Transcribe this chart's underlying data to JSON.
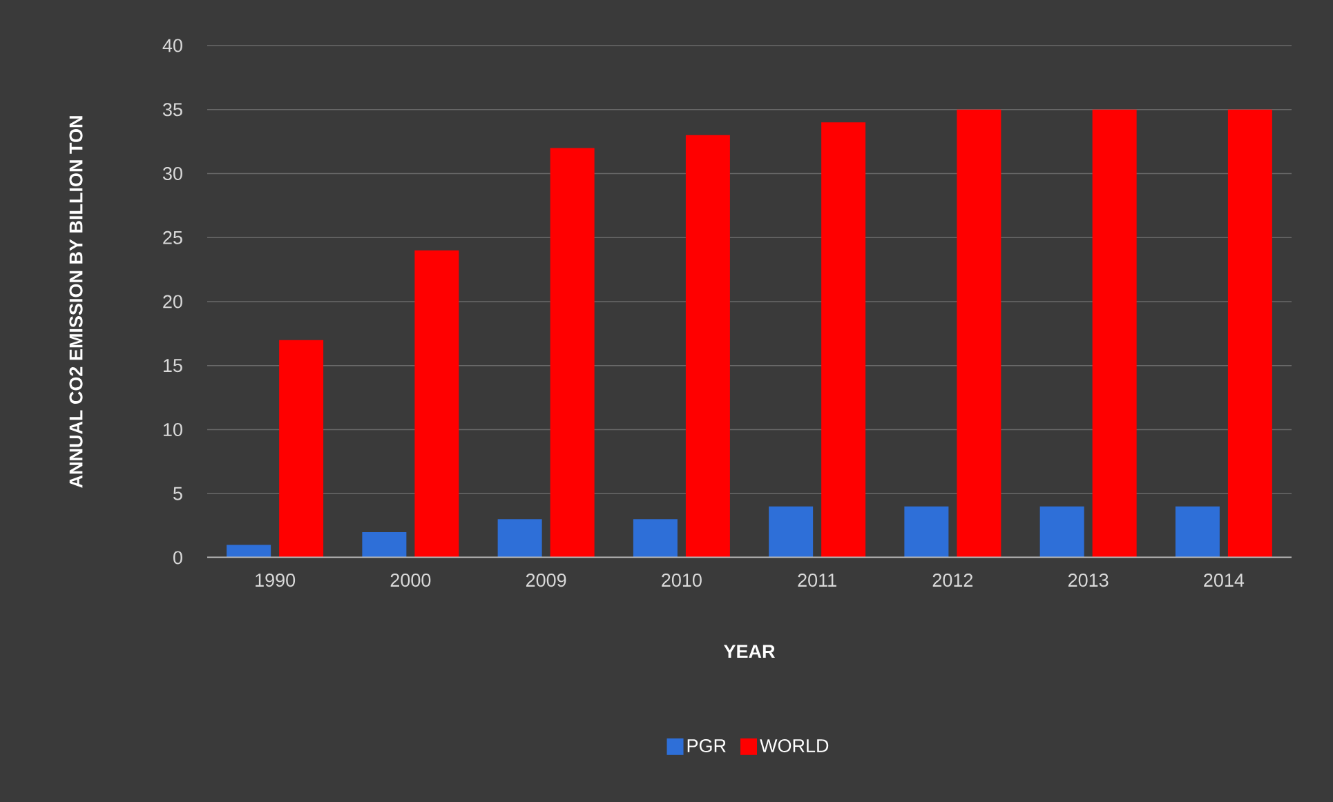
{
  "chart_data": {
    "type": "bar",
    "xlabel": "YEAR",
    "ylabel": "ANNUAL CO2 EMISSION BY BILLION TON",
    "categories": [
      "1990",
      "2000",
      "2009",
      "2010",
      "2011",
      "2012",
      "2013",
      "2014"
    ],
    "series": [
      {
        "name": "PGR",
        "color": "#2e6fd8",
        "values": [
          1,
          2,
          3,
          3,
          4,
          4,
          4,
          4
        ]
      },
      {
        "name": "WORLD",
        "color": "#ff0000",
        "values": [
          17,
          24,
          32,
          33,
          34,
          35,
          35,
          35
        ]
      }
    ],
    "ylim": [
      0,
      40
    ],
    "yticks": [
      0,
      5,
      10,
      15,
      20,
      25,
      30,
      35,
      40
    ],
    "grid": "y",
    "legend": "bottom"
  }
}
